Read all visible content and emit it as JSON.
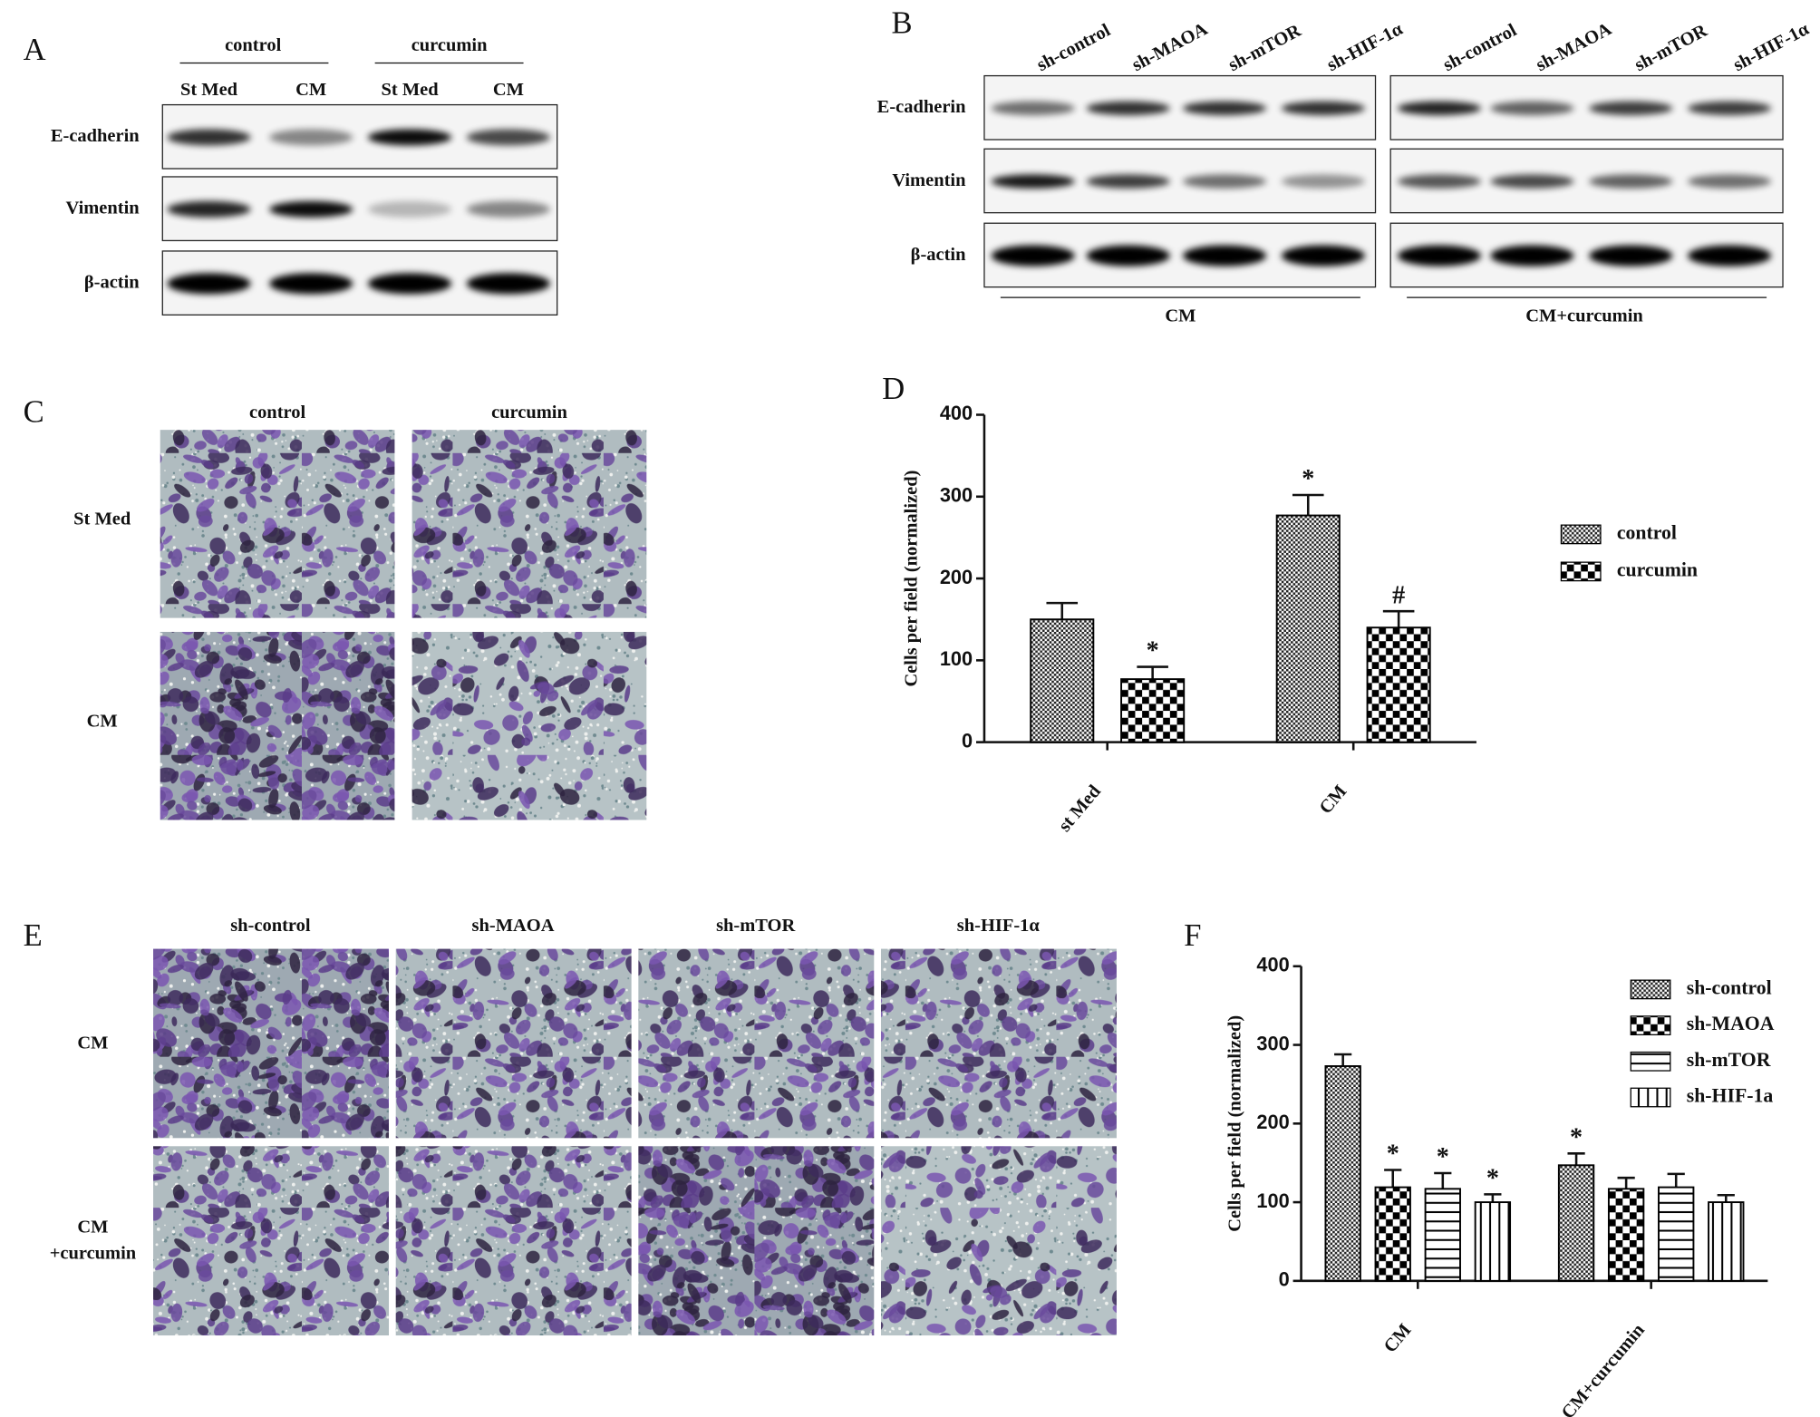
{
  "panels": {
    "A": {
      "label": "A",
      "groups": [
        "control",
        "curcumin"
      ],
      "lanes": [
        "St Med",
        "CM",
        "St Med",
        "CM"
      ],
      "rows": [
        "E-cadherin",
        "Vimentin",
        "β-actin"
      ]
    },
    "B": {
      "label": "B",
      "lanes": [
        "sh-control",
        "sh-MAOA",
        "sh-mTOR",
        "sh-HIF-1α",
        "sh-control",
        "sh-MAOA",
        "sh-mTOR",
        "sh-HIF-1α"
      ],
      "rows": [
        "E-cadherin",
        "Vimentin",
        "β-actin"
      ],
      "groups": [
        "CM",
        "CM+curcumin"
      ]
    },
    "C": {
      "label": "C",
      "columns": [
        "control",
        "curcumin"
      ],
      "rows": [
        [
          "St Med"
        ],
        [
          "CM"
        ]
      ]
    },
    "E": {
      "label": "E",
      "columns": [
        "sh-control",
        "sh-MAOA",
        "sh-mTOR",
        "sh-HIF-1α"
      ],
      "rows": [
        [
          "CM"
        ],
        [
          "CM",
          "+curcumin"
        ]
      ]
    }
  },
  "chart_data": [
    {
      "type": "bar",
      "panel_label": "D",
      "y_label": "Cells per field (normalized)",
      "categories": [
        "st Med",
        "CM"
      ],
      "series": [
        {
          "name": "control",
          "pattern": "fine-checker",
          "color": "#000000",
          "values": [
            150,
            277
          ],
          "errors": [
            20,
            25
          ],
          "annotations": [
            null,
            "*"
          ]
        },
        {
          "name": "curcumin",
          "pattern": "checker",
          "color": "#000000",
          "values": [
            77,
            140
          ],
          "errors": [
            15,
            20
          ],
          "annotations": [
            "*",
            "#"
          ]
        }
      ],
      "ylim": [
        0,
        400
      ],
      "yticks": [
        0,
        100,
        200,
        300,
        400
      ],
      "grid": false,
      "legend": "right"
    },
    {
      "type": "bar",
      "panel_label": "F",
      "y_label": "Cells per field (normalized)",
      "categories": [
        "CM",
        "CM+curcumin"
      ],
      "series": [
        {
          "name": "sh-control",
          "pattern": "fine-checker",
          "color": "#000000",
          "values": [
            273,
            147
          ],
          "errors": [
            15,
            15
          ],
          "annotations": [
            null,
            "*"
          ]
        },
        {
          "name": "sh-MAOA",
          "pattern": "checker",
          "color": "#000000",
          "values": [
            119,
            117
          ],
          "errors": [
            22,
            14
          ],
          "annotations": [
            "*",
            null
          ]
        },
        {
          "name": "sh-mTOR",
          "pattern": "hlines",
          "color": "#000000",
          "values": [
            117,
            119
          ],
          "errors": [
            20,
            17
          ],
          "annotations": [
            "*",
            null
          ]
        },
        {
          "name": "sh-HIF-1a",
          "pattern": "vlines",
          "color": "#000000",
          "values": [
            100,
            100
          ],
          "errors": [
            10,
            9
          ],
          "annotations": [
            "*",
            null
          ]
        }
      ],
      "ylim": [
        0,
        400
      ],
      "yticks": [
        0,
        100,
        200,
        300,
        400
      ],
      "grid": false,
      "legend": "upper right"
    }
  ]
}
